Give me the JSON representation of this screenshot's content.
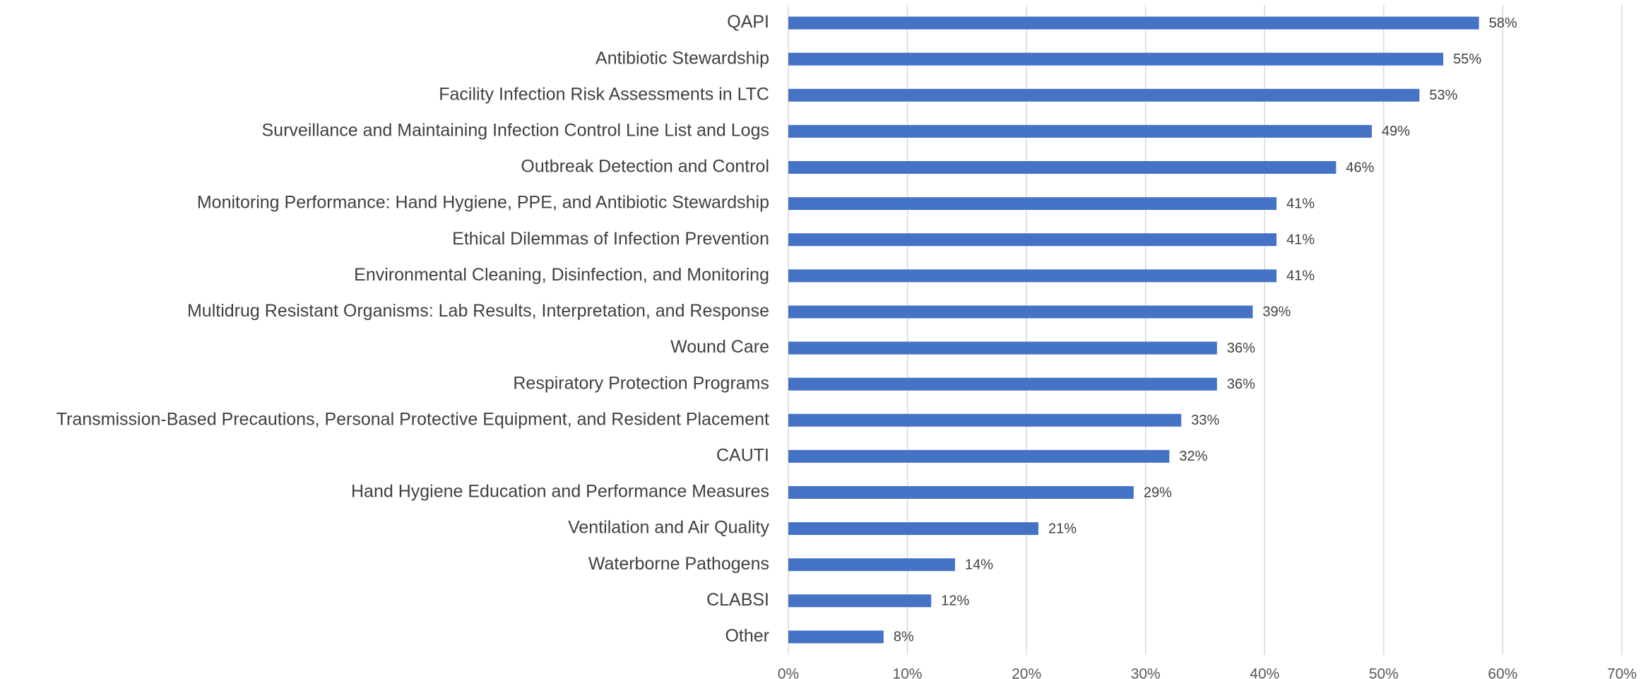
{
  "chart_data": {
    "type": "bar",
    "orientation": "horizontal",
    "categories": [
      "QAPI",
      "Antibiotic Stewardship",
      "Facility Infection Risk Assessments in LTC",
      "Surveillance and Maintaining Infection Control Line List and Logs",
      "Outbreak Detection and Control",
      "Monitoring Performance: Hand Hygiene, PPE, and Antibiotic Stewardship",
      "Ethical Dilemmas of Infection Prevention",
      "Environmental Cleaning, Disinfection, and Monitoring",
      "Multidrug Resistant Organisms: Lab Results, Interpretation, and Response",
      "Wound Care",
      "Respiratory Protection Programs",
      "Transmission-Based Precautions, Personal Protective Equipment, and Resident Placement",
      "CAUTI",
      "Hand Hygiene Education and Performance Measures",
      "Ventilation and Air Quality",
      "Waterborne Pathogens",
      "CLABSI",
      "Other"
    ],
    "values": [
      58,
      55,
      53,
      49,
      46,
      41,
      41,
      41,
      39,
      36,
      36,
      33,
      32,
      29,
      21,
      14,
      12,
      8
    ],
    "value_labels": [
      "58%",
      "55%",
      "53%",
      "49%",
      "46%",
      "41%",
      "41%",
      "41%",
      "39%",
      "36%",
      "36%",
      "33%",
      "32%",
      "29%",
      "21%",
      "14%",
      "12%",
      "8%"
    ],
    "color": "#4472c4",
    "xlim": [
      0,
      70
    ],
    "xticks": [
      {
        "value": 0,
        "label": "0%"
      },
      {
        "value": 10,
        "label": "10%"
      },
      {
        "value": 20,
        "label": "20%"
      },
      {
        "value": 30,
        "label": "30%"
      },
      {
        "value": 40,
        "label": "40%"
      },
      {
        "value": 50,
        "label": "50%"
      },
      {
        "value": 60,
        "label": "60%"
      },
      {
        "value": 70,
        "label": "70%"
      }
    ],
    "grid": true
  }
}
